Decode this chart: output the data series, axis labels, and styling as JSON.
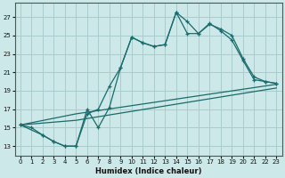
{
  "xlabel": "Humidex (Indice chaleur)",
  "xlim": [
    -0.5,
    23.5
  ],
  "ylim": [
    12,
    28.5
  ],
  "yticks": [
    13,
    15,
    17,
    19,
    21,
    23,
    25,
    27
  ],
  "xticks": [
    0,
    1,
    2,
    3,
    4,
    5,
    6,
    7,
    8,
    9,
    10,
    11,
    12,
    13,
    14,
    15,
    16,
    17,
    18,
    19,
    20,
    21,
    22,
    23
  ],
  "bg_color": "#cce8e8",
  "grid_color": "#aacccc",
  "line_color": "#1a6b6b",
  "line1_x": [
    0,
    1,
    2,
    3,
    4,
    5,
    6,
    7,
    8,
    9,
    10,
    11,
    12,
    13,
    14,
    15,
    16,
    17,
    18,
    19,
    20,
    21,
    22,
    23
  ],
  "line1_y": [
    15.3,
    15.0,
    14.2,
    13.5,
    13.0,
    13.0,
    16.5,
    17.0,
    19.5,
    21.5,
    24.8,
    24.2,
    23.8,
    24.0,
    27.5,
    26.5,
    25.2,
    26.2,
    25.7,
    25.0,
    22.5,
    20.5,
    20.0,
    19.8
  ],
  "line2_x": [
    0,
    2,
    3,
    4,
    5,
    6,
    7,
    8,
    9,
    10,
    11,
    12,
    13,
    14,
    15,
    16,
    17,
    18,
    19,
    20,
    21,
    22,
    23
  ],
  "line2_y": [
    15.3,
    14.2,
    13.5,
    13.0,
    13.0,
    17.0,
    15.0,
    17.2,
    21.5,
    24.8,
    24.2,
    23.8,
    24.0,
    27.5,
    25.2,
    25.2,
    26.3,
    25.5,
    24.5,
    22.3,
    20.2,
    20.0,
    19.8
  ],
  "line3_x": [
    0,
    5,
    23
  ],
  "line3_y": [
    15.3,
    16.5,
    19.7
  ],
  "line4_x": [
    0,
    5,
    23
  ],
  "line4_y": [
    15.3,
    15.8,
    19.3
  ]
}
